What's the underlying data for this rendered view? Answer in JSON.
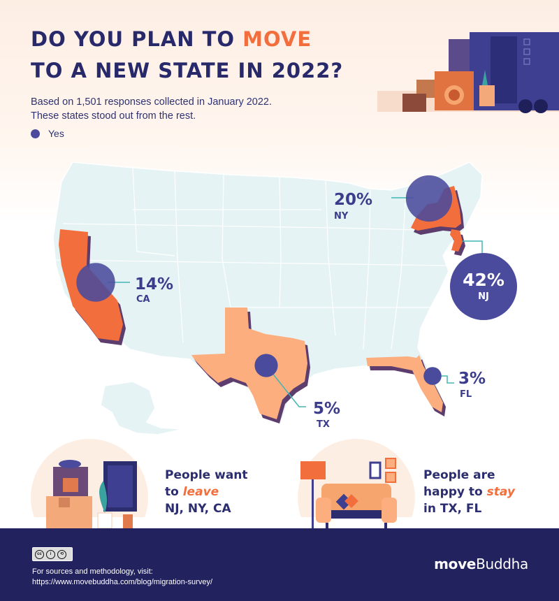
{
  "header": {
    "title_line1_pre": "DO YOU PLAN TO ",
    "title_line1_accent": "MOVE",
    "title_line2": "TO A NEW STATE IN 2022?",
    "subtitle_line1": "Based on 1,501 responses collected in January 2022.",
    "subtitle_line2": "These states stood out from the rest."
  },
  "legend": {
    "label": "Yes",
    "color": "#4a4b9c"
  },
  "colors": {
    "leave_state": "#f26f3d",
    "stay_state": "#fdae7e",
    "land": "#e6f3f4",
    "bubble": "#4a4b9c",
    "navy": "#22225f"
  },
  "chart_data": {
    "type": "bubble_map",
    "series": [
      {
        "name": "Yes"
      }
    ],
    "states": [
      {
        "abbr": "NJ",
        "label": "42%",
        "value": 42,
        "group": "leave"
      },
      {
        "abbr": "NY",
        "label": "20%",
        "value": 20,
        "group": "leave"
      },
      {
        "abbr": "CA",
        "label": "14%",
        "value": 14,
        "group": "leave"
      },
      {
        "abbr": "TX",
        "label": "5%",
        "value": 5,
        "group": "stay"
      },
      {
        "abbr": "FL",
        "label": "3%",
        "value": 3,
        "group": "stay"
      }
    ]
  },
  "bottom": {
    "leave_line1": "People want",
    "leave_line2_pre": "to ",
    "leave_line2_em": "leave",
    "leave_line3": "NJ, NY, CA",
    "stay_line1": "People are",
    "stay_line2_pre": "happy to ",
    "stay_line2_em": "stay",
    "stay_line3": "in TX, FL"
  },
  "footer": {
    "cc_label": "CC BY SA",
    "sources_line1": "For sources and methodology, visit:",
    "sources_line2": "https://www.movebuddha.com/blog/migration-survey/",
    "logo_bold": "move",
    "logo_regular": "Buddha"
  }
}
